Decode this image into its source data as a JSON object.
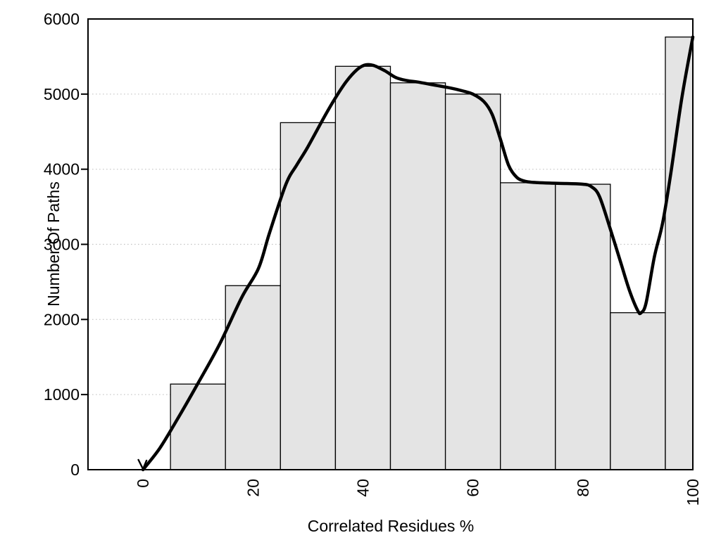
{
  "chart_data": {
    "type": "bar",
    "subtype": "histogram-with-smoothed-curve",
    "title": "",
    "xlabel": "Correlated Residues %",
    "ylabel": "Number Of Paths",
    "xlim": [
      -10,
      100
    ],
    "ylim": [
      0,
      6000
    ],
    "x_ticks": [
      0,
      20,
      40,
      60,
      80,
      100
    ],
    "y_ticks": [
      0,
      1000,
      2000,
      3000,
      4000,
      5000,
      6000
    ],
    "grid": {
      "horizontal_at": [
        1000,
        2000,
        3000,
        4000,
        5000
      ],
      "style": "dotted",
      "color": "#c6c6c6"
    },
    "legend": "none",
    "bars": {
      "bin_width": 10,
      "note": "last bin clipped at x=100",
      "bins": [
        {
          "x0": 5,
          "x1": 15,
          "value": 1140
        },
        {
          "x0": 15,
          "x1": 25,
          "value": 2450
        },
        {
          "x0": 25,
          "x1": 35,
          "value": 4620
        },
        {
          "x0": 35,
          "x1": 45,
          "value": 5370
        },
        {
          "x0": 45,
          "x1": 55,
          "value": 5150
        },
        {
          "x0": 55,
          "x1": 65,
          "value": 5000
        },
        {
          "x0": 65,
          "x1": 75,
          "value": 3820
        },
        {
          "x0": 75,
          "x1": 85,
          "value": 3800
        },
        {
          "x0": 85,
          "x1": 95,
          "value": 2090
        },
        {
          "x0": 95,
          "x1": 100,
          "value": 5760
        }
      ]
    },
    "curve": {
      "name": "smoothed-trend-curve",
      "start_arrow": true,
      "points": [
        [
          0,
          0
        ],
        [
          3,
          280
        ],
        [
          6,
          640
        ],
        [
          10,
          1150
        ],
        [
          14,
          1680
        ],
        [
          18,
          2300
        ],
        [
          21,
          2680
        ],
        [
          23,
          3150
        ],
        [
          26,
          3800
        ],
        [
          28,
          4060
        ],
        [
          30,
          4300
        ],
        [
          33,
          4700
        ],
        [
          35,
          4950
        ],
        [
          37,
          5170
        ],
        [
          39,
          5330
        ],
        [
          40.5,
          5390
        ],
        [
          42,
          5380
        ],
        [
          44,
          5310
        ],
        [
          46,
          5220
        ],
        [
          48,
          5180
        ],
        [
          50,
          5160
        ],
        [
          53,
          5120
        ],
        [
          56,
          5080
        ],
        [
          58,
          5045
        ],
        [
          60,
          5000
        ],
        [
          62,
          4900
        ],
        [
          63.5,
          4730
        ],
        [
          65,
          4400
        ],
        [
          66.5,
          4050
        ],
        [
          68,
          3890
        ],
        [
          69.5,
          3840
        ],
        [
          71,
          3825
        ],
        [
          74,
          3815
        ],
        [
          77,
          3810
        ],
        [
          80,
          3800
        ],
        [
          81.5,
          3770
        ],
        [
          83,
          3640
        ],
        [
          85,
          3200
        ],
        [
          87,
          2730
        ],
        [
          88.5,
          2380
        ],
        [
          90,
          2115
        ],
        [
          90.6,
          2090
        ],
        [
          91.5,
          2220
        ],
        [
          93,
          2830
        ],
        [
          94.5,
          3280
        ],
        [
          96,
          3950
        ],
        [
          98,
          4950
        ],
        [
          100,
          5760
        ]
      ]
    },
    "colors": {
      "background": "#ffffff",
      "bar_fill": "#e4e4e4",
      "bar_stroke": "#000000",
      "curve": "#000000",
      "border": "#000000",
      "grid": "#c6c6c6",
      "text": "#000000"
    }
  }
}
